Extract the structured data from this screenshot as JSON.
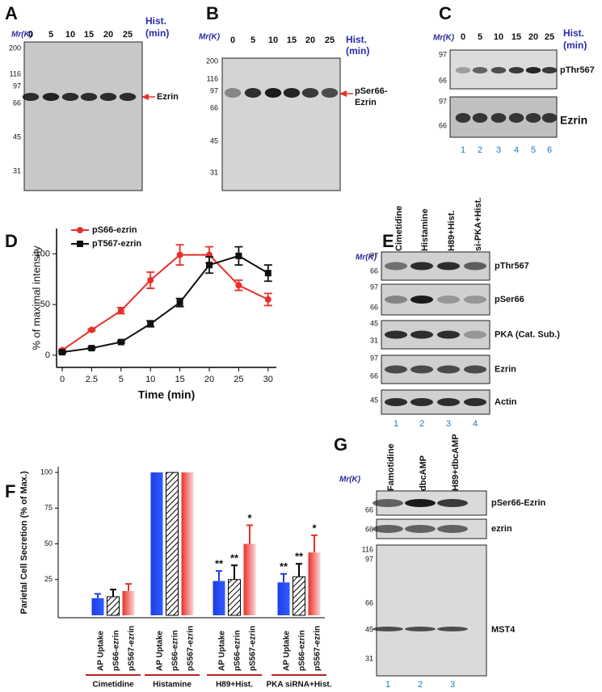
{
  "panels": {
    "A": {
      "label": "A",
      "mr": "Mr(K)",
      "lanes": [
        "0",
        "5",
        "10",
        "15",
        "20",
        "25"
      ],
      "lane_title": [
        "Hist.",
        "(min)"
      ],
      "markers": [
        200,
        116,
        97,
        66,
        45,
        31
      ],
      "band": [
        "Ezrin"
      ]
    },
    "B": {
      "label": "B",
      "mr": "Mr(K)",
      "lanes": [
        "0",
        "5",
        "10",
        "15",
        "20",
        "25"
      ],
      "lane_title": [
        "Hist.",
        "(min)"
      ],
      "markers": [
        200,
        116,
        97,
        66,
        45,
        31
      ],
      "band": [
        "pSer66-",
        "Ezrin"
      ]
    },
    "C": {
      "label": "C",
      "mr": "Mr(K)",
      "lanes": [
        "0",
        "5",
        "10",
        "15",
        "20",
        "25"
      ],
      "lane_title": [
        "Hist.",
        "(min)"
      ],
      "blots": [
        {
          "markers": [
            97,
            66
          ],
          "name": "pThr567"
        },
        {
          "markers": [
            97,
            66
          ],
          "name": "Ezrin"
        }
      ],
      "lane_numbers": [
        "1",
        "2",
        "3",
        "4",
        "5",
        "6"
      ]
    },
    "E": {
      "label": "E",
      "mr": "Mr(K)",
      "lanes": [
        "Cimetidine",
        "Histamine",
        "H89+Hist.",
        "si-PKA+Hist."
      ],
      "blots": [
        {
          "markers": [
            97,
            66
          ],
          "name": "pThr567"
        },
        {
          "markers": [
            97,
            66
          ],
          "name": "pSer66"
        },
        {
          "markers": [
            45,
            31
          ],
          "name": "PKA (Cat. Sub.)"
        },
        {
          "markers": [
            97,
            66
          ],
          "name": "Ezrin"
        },
        {
          "markers": [
            45
          ],
          "name": "Actin"
        }
      ],
      "lane_numbers": [
        "1",
        "2",
        "3",
        "4"
      ]
    },
    "G": {
      "label": "G",
      "mr": "Mr(K)",
      "lanes": [
        "Famotidine",
        "dbcAMP",
        "H89+dbcAMP"
      ],
      "blots": [
        {
          "markers": [
            66
          ],
          "name": "pSer66-Ezrin"
        },
        {
          "markers": [
            66
          ],
          "name": "ezrin"
        },
        {
          "markers": [
            116,
            97,
            66,
            45,
            31
          ],
          "name": "MST4"
        }
      ],
      "lane_numbers": [
        "1",
        "2",
        "3"
      ]
    }
  },
  "chart_data": [
    {
      "type": "line",
      "panel": "D",
      "categories": [
        "0",
        "2.5",
        "5",
        "10",
        "15",
        "20",
        "25",
        "30"
      ],
      "xlabel": "Time (min)",
      "ylabel": "% of maximal intensity",
      "ylim": [
        -12,
        125
      ],
      "yticks": [
        0,
        50,
        100
      ],
      "series": [
        {
          "name": "pS66-ezrin",
          "color": "#e8302a",
          "marker": "circle",
          "values": [
            5,
            25,
            44,
            74,
            99,
            99,
            69,
            55
          ],
          "errors": [
            1,
            1,
            3,
            8,
            10,
            8,
            5,
            6
          ]
        },
        {
          "name": "pT567-ezrin",
          "color": "#111111",
          "marker": "square",
          "values": [
            3,
            7,
            13,
            31,
            52,
            89,
            98,
            81
          ],
          "errors": [
            1,
            1,
            1,
            3,
            4,
            8,
            9,
            8
          ]
        }
      ]
    },
    {
      "type": "bar",
      "panel": "F",
      "categories": [
        "Cimetidine",
        "Histamine",
        "H89+Hist.",
        "PKA siRNA+Hist."
      ],
      "ylabel": "Parietal Cell Secretion (% of Max.)",
      "ylim": [
        0,
        104
      ],
      "yticks": [
        25,
        50,
        75,
        100
      ],
      "series": [
        {
          "name": "AP Uptake",
          "color": "#1f3de8",
          "pattern": "solid",
          "values": [
            12,
            100,
            24,
            23
          ],
          "errors": [
            3,
            0,
            7,
            6
          ],
          "significance": [
            null,
            null,
            "**",
            "**"
          ]
        },
        {
          "name": "pS66-ezrin",
          "color": "#000000",
          "pattern": "hatch",
          "values": [
            13,
            100,
            25,
            27
          ],
          "errors": [
            5,
            0,
            10,
            9
          ],
          "significance": [
            null,
            null,
            "**",
            "**"
          ]
        },
        {
          "name": "pS567-ezrin",
          "color": "#e8302a",
          "pattern": "gradient",
          "values": [
            17,
            100,
            50,
            44
          ],
          "errors": [
            5,
            0,
            13,
            12
          ],
          "significance": [
            null,
            null,
            "*",
            "*"
          ]
        }
      ]
    }
  ]
}
